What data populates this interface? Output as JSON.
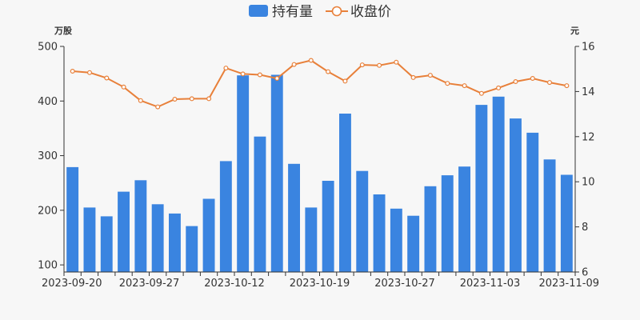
{
  "chart_data": {
    "type": "bar+line",
    "x_tick_labels": [
      "2023-09-20",
      "2023-09-27",
      "2023-10-12",
      "2023-10-19",
      "2023-10-27",
      "2023-11-03",
      "2023-11-09"
    ],
    "legend": {
      "position": "top-center",
      "items": [
        "持有量",
        "收盘价"
      ]
    },
    "left_axis": {
      "unit": "万股",
      "ticks": [
        100,
        200,
        300,
        400,
        500
      ],
      "range": [
        87,
        500
      ]
    },
    "right_axis": {
      "unit": "元",
      "ticks": [
        6,
        8,
        10,
        12,
        14,
        16
      ],
      "range": [
        6,
        16
      ]
    },
    "grid": false,
    "colors": {
      "bar": "#3a84e0",
      "line": "#e8803a",
      "axis": "#333333",
      "text": "#333333"
    },
    "series": [
      {
        "name": "持有量",
        "type": "bar",
        "axis": "left",
        "values": [
          279,
          205,
          189,
          234,
          255,
          211,
          194,
          171,
          221,
          290,
          447,
          335,
          448,
          285,
          205,
          254,
          377,
          272,
          229,
          203,
          190,
          244,
          264,
          280,
          393,
          408,
          368,
          342,
          293,
          265
        ]
      },
      {
        "name": "收盘价",
        "type": "line",
        "axis": "right",
        "values": [
          14.9,
          14.84,
          14.6,
          14.2,
          13.6,
          13.32,
          13.66,
          13.68,
          13.68,
          15.04,
          14.78,
          14.74,
          14.58,
          15.2,
          15.38,
          14.88,
          14.46,
          15.18,
          15.16,
          15.3,
          14.62,
          14.72,
          14.36,
          14.26,
          13.92,
          14.16,
          14.44,
          14.58,
          14.4,
          14.26
        ]
      }
    ]
  }
}
